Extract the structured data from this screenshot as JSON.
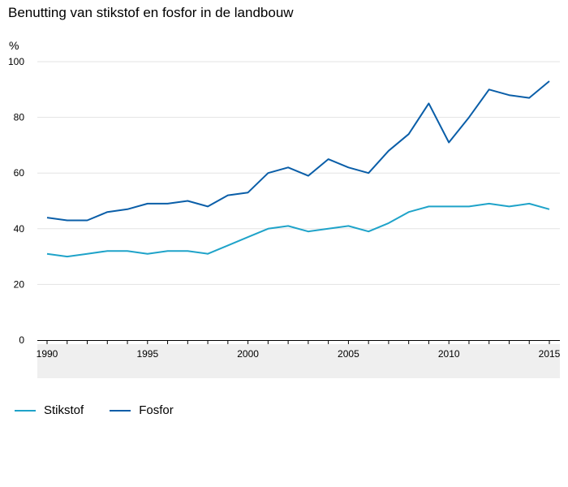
{
  "chart_data": {
    "type": "line",
    "title": "Benutting van stikstof en fosfor in de landbouw",
    "ylabel": "%",
    "xlabel": "",
    "ylim": [
      0,
      100
    ],
    "xlim": [
      1990,
      2015
    ],
    "yticks": [
      0,
      20,
      40,
      60,
      80,
      100
    ],
    "xticks": [
      1990,
      1995,
      2000,
      2005,
      2010,
      2015
    ],
    "grid": true,
    "legend_position": "bottom-left",
    "x": [
      1990,
      1991,
      1992,
      1993,
      1994,
      1995,
      1996,
      1997,
      1998,
      1999,
      2000,
      2001,
      2002,
      2003,
      2004,
      2005,
      2006,
      2007,
      2008,
      2009,
      2010,
      2011,
      2012,
      2013,
      2014,
      2015
    ],
    "series": [
      {
        "name": "Stikstof",
        "color": "#1fa3c9",
        "values": [
          31,
          30,
          31,
          32,
          32,
          31,
          32,
          32,
          31,
          34,
          37,
          40,
          41,
          39,
          40,
          41,
          39,
          42,
          46,
          48,
          48,
          48,
          49,
          48,
          49,
          47
        ]
      },
      {
        "name": "Fosfor",
        "color": "#0a5ea8",
        "values": [
          44,
          43,
          43,
          46,
          47,
          49,
          49,
          50,
          48,
          52,
          53,
          60,
          62,
          59,
          65,
          62,
          60,
          68,
          74,
          85,
          71,
          80,
          90,
          88,
          87,
          93
        ]
      }
    ]
  }
}
